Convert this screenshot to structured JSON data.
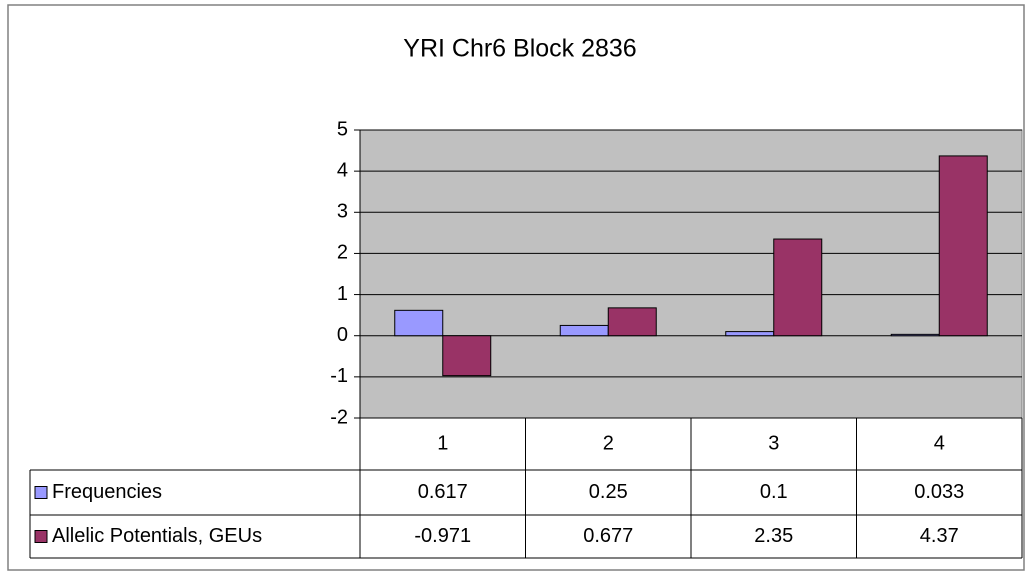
{
  "chart_data": {
    "type": "bar",
    "title": "YRI Chr6 Block 2836",
    "categories": [
      "1",
      "2",
      "3",
      "4"
    ],
    "series": [
      {
        "name": "Frequencies",
        "color": "#9999ff",
        "values": [
          0.617,
          0.25,
          0.1,
          0.033
        ]
      },
      {
        "name": "Allelic Potentials, GEUs",
        "color": "#993366",
        "values": [
          -0.971,
          0.677,
          2.35,
          4.37
        ]
      }
    ],
    "ylim": [
      -2,
      5
    ],
    "yticks": [
      -2,
      -1,
      0,
      1,
      2,
      3,
      4,
      5
    ],
    "grid": true,
    "data_table": true
  }
}
